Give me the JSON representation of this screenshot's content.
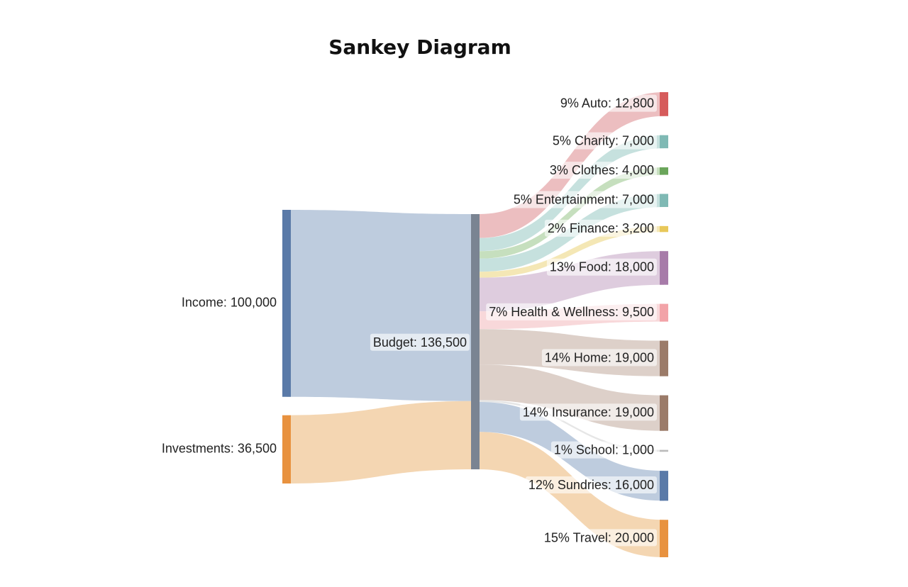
{
  "title": "Sankey Diagram",
  "chart_data": {
    "type": "sankey",
    "title": "Sankey Diagram",
    "sources": [
      {
        "id": "income",
        "label": "Income: 100,000",
        "name": "Income",
        "value": 100000,
        "color": "#5a7aa8"
      },
      {
        "id": "investments",
        "label": "Investments: 36,500",
        "name": "Investments",
        "value": 36500,
        "color": "#e8923f"
      }
    ],
    "middle": {
      "id": "budget",
      "label": "Budget: 136,500",
      "name": "Budget",
      "value": 136500,
      "color": "#7a8492"
    },
    "targets": [
      {
        "id": "auto",
        "label": "9% Auto: 12,800",
        "name": "Auto",
        "percent": 9,
        "value": 12800,
        "color": "#d65b5b",
        "flow": "#e9b3b5"
      },
      {
        "id": "charity",
        "label": "5% Charity: 7,000",
        "name": "Charity",
        "percent": 5,
        "value": 7000,
        "color": "#7fb9b4",
        "flow": "#bcdcd8"
      },
      {
        "id": "clothes",
        "label": "3% Clothes: 4,000",
        "name": "Clothes",
        "percent": 3,
        "value": 4000,
        "color": "#6aa55a",
        "flow": "#bcd9b3"
      },
      {
        "id": "entertainment",
        "label": "5% Entertainment: 7,000",
        "name": "Entertainment",
        "percent": 5,
        "value": 7000,
        "color": "#7fb9b4",
        "flow": "#bcdcd8"
      },
      {
        "id": "finance",
        "label": "2% Finance: 3,200",
        "name": "Finance",
        "percent": 2,
        "value": 3200,
        "color": "#e8c85a",
        "flow": "#f2e3a8"
      },
      {
        "id": "food",
        "label": "13% Food: 18,000",
        "name": "Food",
        "percent": 13,
        "value": 18000,
        "color": "#a77ba9",
        "flow": "#d8c3d8"
      },
      {
        "id": "health",
        "label": "7% Health & Wellness: 9,500",
        "name": "Health & Wellness",
        "percent": 7,
        "value": 9500,
        "color": "#f2a3a8",
        "flow": "#f7d1d4"
      },
      {
        "id": "home",
        "label": "14% Home: 19,000",
        "name": "Home",
        "percent": 14,
        "value": 19000,
        "color": "#9b7b69",
        "flow": "#d7c8bf"
      },
      {
        "id": "insurance",
        "label": "14% Insurance: 19,000",
        "name": "Insurance",
        "percent": 14,
        "value": 19000,
        "color": "#9b7b69",
        "flow": "#d7c8bf"
      },
      {
        "id": "school",
        "label": "1% School: 1,000",
        "name": "School",
        "percent": 1,
        "value": 1000,
        "color": "#bbbbbb",
        "flow": "#e2e2e2"
      },
      {
        "id": "sundries",
        "label": "12% Sundries: 16,000",
        "name": "Sundries",
        "percent": 12,
        "value": 16000,
        "color": "#5a7aa8",
        "flow": "#b3c3d8"
      },
      {
        "id": "travel",
        "label": "15% Travel: 20,000",
        "name": "Travel",
        "percent": 15,
        "value": 20000,
        "color": "#e8923f",
        "flow": "#f2cfa4"
      }
    ],
    "source_flow_colors": {
      "income": "#b3c3d8",
      "investments": "#f2cfa4"
    }
  }
}
